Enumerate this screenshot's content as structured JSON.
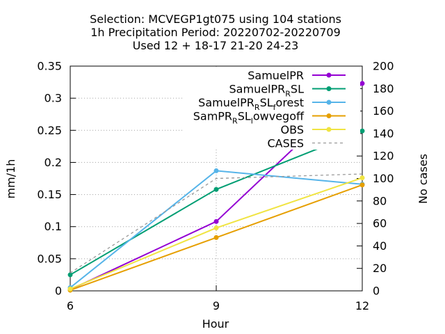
{
  "chart_data": {
    "type": "line",
    "title_lines": [
      "Selection: MCVEGP1gt075 using   104 stations",
      "1h Precipitation   Period: 20220702-20220709",
      "Used  12 + 18-17 21-20 24-23"
    ],
    "xlabel": "Hour",
    "ylabel": "mm/1h",
    "y2label": "No cases",
    "x": [
      6,
      9,
      12
    ],
    "x_ticks": [
      "6",
      "9",
      "12"
    ],
    "xlim": [
      6,
      12
    ],
    "ylim": [
      0,
      0.35
    ],
    "y_ticks": [
      "0",
      "0.05",
      "0.1",
      "0.15",
      "0.2",
      "0.25",
      "0.3",
      "0.35"
    ],
    "y2lim": [
      0,
      200
    ],
    "y2_ticks": [
      "0",
      "20",
      "40",
      "60",
      "80",
      "100",
      "120",
      "140",
      "160",
      "180",
      "200"
    ],
    "grid": true,
    "legend_position": "top-right",
    "series": [
      {
        "name": "SamuelPR",
        "label_main": "SamuelPR",
        "label_sub": "",
        "label_tail": "",
        "color": "#9400d3",
        "axis": "y",
        "dashed": false,
        "markers": true,
        "values": [
          0.002,
          0.108,
          0.323
        ]
      },
      {
        "name": "SamuelPR_RSL",
        "label_main": "SamuelPR",
        "label_sub": "R",
        "label_tail": "SL",
        "color": "#009e73",
        "axis": "y",
        "dashed": false,
        "markers": true,
        "values": [
          0.025,
          0.158,
          0.249
        ]
      },
      {
        "name": "SamuelPR_RSL_forest",
        "label_main": "SamuelPR",
        "label_sub": "R",
        "label_tail": "SL",
        "label_sub2": "f",
        "label_tail2": "orest",
        "color": "#56b4e9",
        "axis": "y",
        "dashed": false,
        "markers": true,
        "values": [
          0.005,
          0.187,
          0.166
        ]
      },
      {
        "name": "SamPR_RSL_lowvegoff",
        "label_main": "SamPR",
        "label_sub": "R",
        "label_tail": "SL",
        "label_sub2": "l",
        "label_tail2": "owvegoff",
        "color": "#e69f00",
        "axis": "y",
        "dashed": false,
        "markers": true,
        "values": [
          0.001,
          0.083,
          0.165
        ]
      },
      {
        "name": "OBS",
        "label_main": "OBS",
        "label_sub": "",
        "label_tail": "",
        "color": "#f0e442",
        "axis": "y",
        "dashed": false,
        "markers": true,
        "values": [
          0.003,
          0.098,
          0.176
        ]
      },
      {
        "name": "CASES",
        "label_main": "CASES",
        "label_sub": "",
        "label_tail": "",
        "color": "#999999",
        "axis": "y2",
        "dashed": true,
        "markers": false,
        "values": [
          16,
          100,
          104
        ]
      }
    ]
  }
}
